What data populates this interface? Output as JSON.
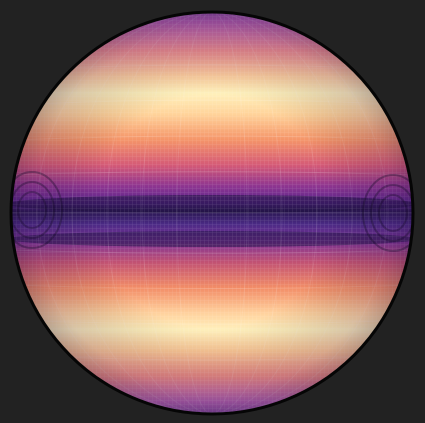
{
  "scene": {
    "subject": "banded-sphere",
    "background_color": "#222222",
    "outline_color": "#050505",
    "band_palette": [
      "#24124f",
      "#4a1f7a",
      "#7f2f8a",
      "#c2476f",
      "#f07a5a",
      "#ffb97a",
      "#fff0b0"
    ]
  }
}
